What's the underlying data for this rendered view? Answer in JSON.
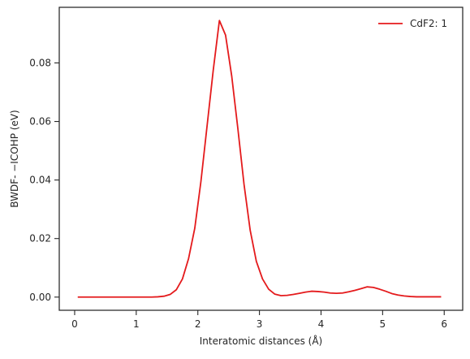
{
  "chart_data": {
    "type": "line",
    "title": "",
    "xlabel": "Interatomic distances (Å)",
    "ylabel": "BWDF- −ICOHP (eV)",
    "xlim": [
      -0.25,
      6.3
    ],
    "ylim": [
      -0.0045,
      0.099
    ],
    "x_ticks": [
      0,
      1,
      2,
      3,
      4,
      5,
      6
    ],
    "y_ticks": [
      0.0,
      0.02,
      0.04,
      0.06,
      0.08
    ],
    "y_tick_labels": [
      "0.00",
      "0.02",
      "0.04",
      "0.06",
      "0.08"
    ],
    "grid": false,
    "legend": {
      "position": "top-right",
      "entries": [
        "CdF2: 1"
      ]
    },
    "series": [
      {
        "name": "CdF2: 1",
        "color": "#e41a1c",
        "x": [
          0.05,
          0.15,
          0.25,
          0.35,
          0.45,
          0.55,
          0.65,
          0.75,
          0.85,
          0.95,
          1.05,
          1.15,
          1.25,
          1.35,
          1.45,
          1.55,
          1.65,
          1.75,
          1.85,
          1.95,
          2.05,
          2.15,
          2.25,
          2.35,
          2.45,
          2.55,
          2.65,
          2.75,
          2.85,
          2.95,
          3.05,
          3.15,
          3.25,
          3.35,
          3.45,
          3.55,
          3.65,
          3.75,
          3.85,
          3.95,
          4.05,
          4.15,
          4.25,
          4.35,
          4.45,
          4.55,
          4.65,
          4.75,
          4.85,
          4.95,
          5.05,
          5.15,
          5.25,
          5.35,
          5.45,
          5.55,
          5.65,
          5.75,
          5.85,
          5.95
        ],
        "y": [
          0.0,
          0.0,
          0.0,
          0.0,
          0.0,
          0.0,
          0.0,
          0.0,
          0.0,
          0.0,
          0.0,
          0.0,
          0.0,
          0.0001,
          0.0003,
          0.0009,
          0.0025,
          0.0062,
          0.0132,
          0.0235,
          0.0395,
          0.0585,
          0.0775,
          0.0945,
          0.0895,
          0.0755,
          0.0575,
          0.0385,
          0.0228,
          0.0122,
          0.0062,
          0.0027,
          0.001,
          0.0005,
          0.0006,
          0.0009,
          0.0013,
          0.0017,
          0.002,
          0.0019,
          0.0017,
          0.0014,
          0.0013,
          0.0014,
          0.0018,
          0.0023,
          0.0029,
          0.0035,
          0.0033,
          0.0027,
          0.002,
          0.0012,
          0.0007,
          0.0004,
          0.0002,
          0.0001,
          0.0001,
          0.0001,
          0.0001,
          0.0001
        ]
      }
    ]
  }
}
